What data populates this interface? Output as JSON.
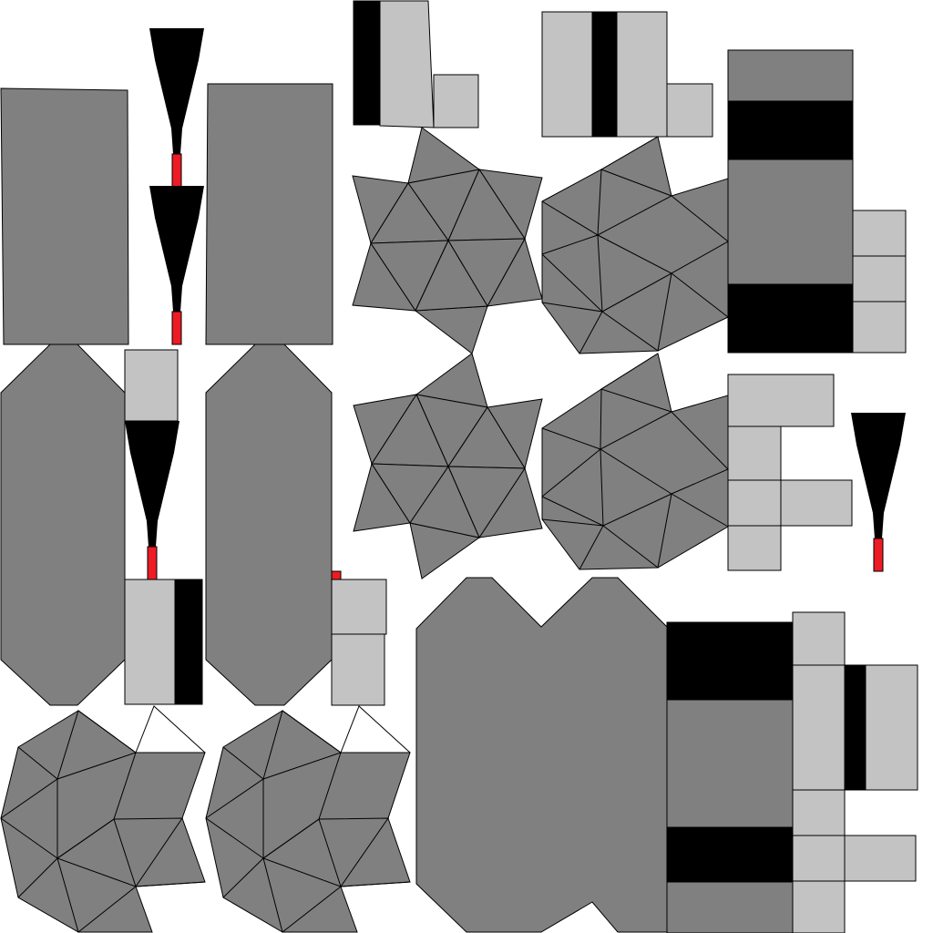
{
  "colors": {
    "background": "#ffffff",
    "dark_gray": "#808080",
    "light_gray": "#c3c3c3",
    "black": "#000000",
    "red": "#ed1c24",
    "stroke": "#000000"
  },
  "texture_atlas": {
    "pieces": [
      "tall-panel-left",
      "tall-panel-right",
      "arrow-marker",
      "octagon-panel-left",
      "octagon-panel-right",
      "stripe-block-top",
      "stripe-block-middle",
      "triangle-net-top",
      "triangle-net-bottom",
      "hex-net-top",
      "hex-net-bottom",
      "stack-right-top",
      "cross-block",
      "triangle-net-left",
      "double-octagon",
      "stack-bottom-right"
    ]
  }
}
